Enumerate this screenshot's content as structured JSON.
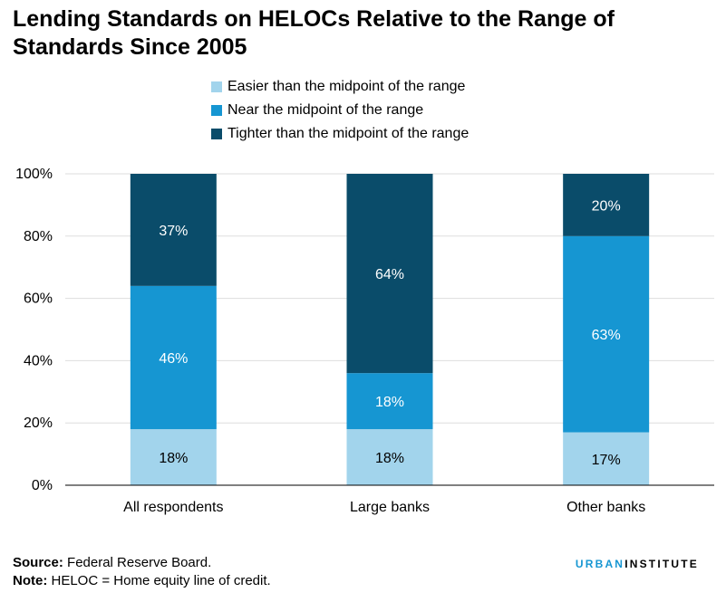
{
  "title": "Lending Standards on HELOCs Relative to the Range of Standards Since 2005",
  "chart_data": {
    "type": "bar",
    "stacked": true,
    "categories": [
      "All respondents",
      "Large banks",
      "Other banks"
    ],
    "series": [
      {
        "name": "Easier than the midpoint of the range",
        "values": [
          18,
          18,
          17
        ],
        "labels": [
          "18%",
          "18%",
          "17%"
        ],
        "color": "#a2d4ec"
      },
      {
        "name": "Near the midpoint of the range",
        "values": [
          46,
          18,
          63
        ],
        "labels": [
          "46%",
          "18%",
          "63%"
        ],
        "color": "#1696d2"
      },
      {
        "name": "Tighter than the midpoint of the range",
        "values": [
          37,
          64,
          20
        ],
        "labels": [
          "37%",
          "64%",
          "20%"
        ],
        "color": "#0a4c6a"
      }
    ],
    "ylim": [
      0,
      100
    ],
    "yticks": [
      "0%",
      "20%",
      "40%",
      "60%",
      "80%",
      "100%"
    ],
    "grid": true,
    "legend_position": "top"
  },
  "footer": {
    "source_label": "Source:",
    "source_text": " Federal Reserve Board.",
    "note_label": "Note:",
    "note_text": " HELOC = Home equity line of credit."
  },
  "brand": {
    "part1": "URBAN",
    "part2": "INSTITUTE"
  }
}
